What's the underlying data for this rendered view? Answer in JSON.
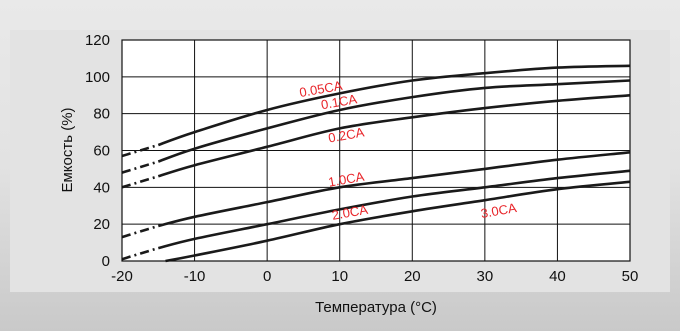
{
  "chart_data": {
    "type": "line",
    "title": "",
    "xlabel": "Температура (°C)",
    "ylabel": "Емкость (%)",
    "xlim": [
      -20,
      50
    ],
    "ylim": [
      0,
      120
    ],
    "x_ticks": [
      -20,
      -10,
      0,
      10,
      20,
      30,
      40,
      50
    ],
    "y_ticks": [
      0,
      20,
      40,
      60,
      80,
      100,
      120
    ],
    "grid": true,
    "legend": "none",
    "curve_color": "#1a1a1a",
    "label_color": "#e8262b",
    "series": [
      {
        "name": "0.05CA",
        "dashed_until": -15,
        "points": [
          [
            -20,
            57
          ],
          [
            -15,
            63
          ],
          [
            -10,
            70
          ],
          [
            0,
            82
          ],
          [
            10,
            91
          ],
          [
            20,
            98
          ],
          [
            30,
            102
          ],
          [
            40,
            105
          ],
          [
            50,
            106
          ]
        ]
      },
      {
        "name": "0.1CA",
        "dashed_until": -15,
        "points": [
          [
            -20,
            48
          ],
          [
            -15,
            54
          ],
          [
            -10,
            61
          ],
          [
            0,
            72
          ],
          [
            10,
            82
          ],
          [
            20,
            89
          ],
          [
            30,
            94
          ],
          [
            40,
            96
          ],
          [
            50,
            98
          ]
        ]
      },
      {
        "name": "0.2CA",
        "dashed_until": -15,
        "points": [
          [
            -20,
            40
          ],
          [
            -15,
            46
          ],
          [
            -10,
            52
          ],
          [
            0,
            62
          ],
          [
            10,
            72
          ],
          [
            20,
            78
          ],
          [
            30,
            83
          ],
          [
            40,
            87
          ],
          [
            50,
            90
          ]
        ]
      },
      {
        "name": "1.0CA",
        "dashed_until": -15,
        "points": [
          [
            -20,
            13
          ],
          [
            -15,
            19
          ],
          [
            -10,
            24
          ],
          [
            0,
            32
          ],
          [
            10,
            40
          ],
          [
            20,
            45
          ],
          [
            30,
            50
          ],
          [
            40,
            55
          ],
          [
            50,
            59
          ]
        ]
      },
      {
        "name": "2.0CA",
        "dashed_until": -15,
        "points": [
          [
            -20,
            1
          ],
          [
            -15,
            7
          ],
          [
            -10,
            12
          ],
          [
            0,
            20
          ],
          [
            10,
            28
          ],
          [
            20,
            35
          ],
          [
            30,
            40
          ],
          [
            40,
            45
          ],
          [
            50,
            49
          ]
        ]
      },
      {
        "name": "3.0CA",
        "dashed_until": null,
        "points": [
          [
            -14,
            0
          ],
          [
            -10,
            3
          ],
          [
            0,
            11
          ],
          [
            10,
            20
          ],
          [
            20,
            27
          ],
          [
            30,
            33
          ],
          [
            40,
            39
          ],
          [
            50,
            43
          ]
        ]
      }
    ],
    "curve_labels": [
      {
        "text": "0.05CA",
        "x": 7.5,
        "y": 91
      },
      {
        "text": "0.1CA",
        "x": 10,
        "y": 84
      },
      {
        "text": "0.2CA",
        "x": 11,
        "y": 66
      },
      {
        "text": "1.0CA",
        "x": 11,
        "y": 42
      },
      {
        "text": "2.0CA",
        "x": 11.5,
        "y": 24
      },
      {
        "text": "3.0CA",
        "x": 32,
        "y": 25
      }
    ]
  }
}
